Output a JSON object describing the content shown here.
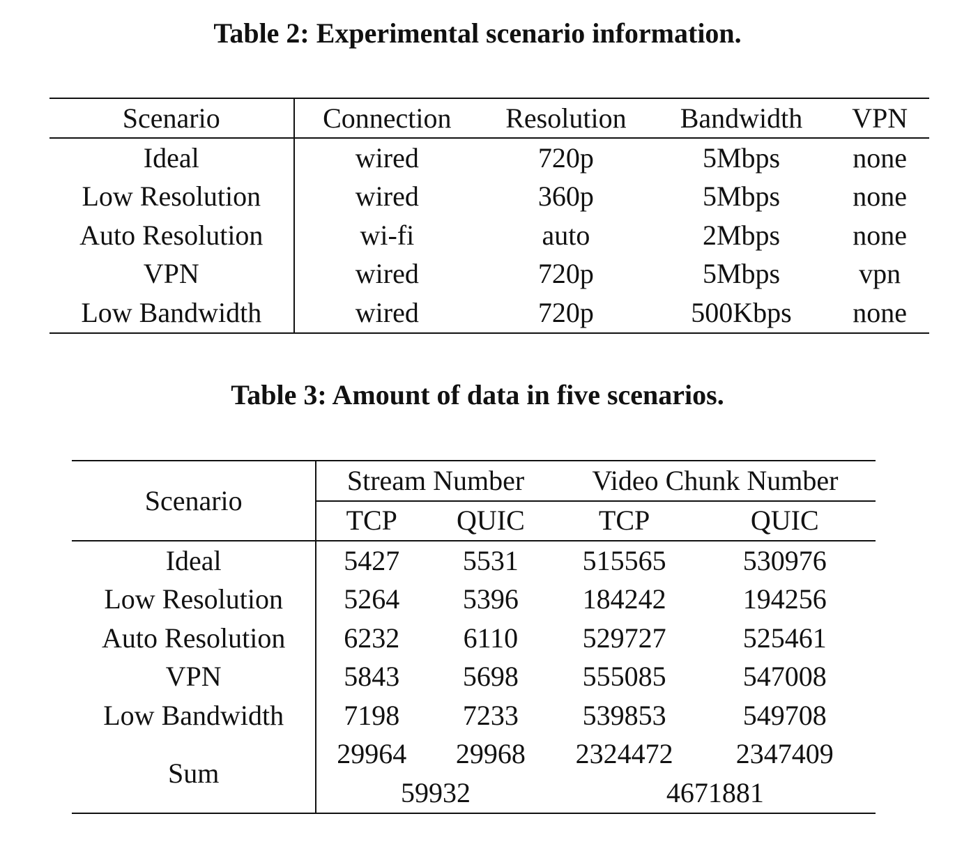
{
  "table2": {
    "caption": "Table 2: Experimental scenario information.",
    "headers": [
      "Scenario",
      "Connection",
      "Resolution",
      "Bandwidth",
      "VPN"
    ],
    "rows": [
      [
        "Ideal",
        "wired",
        "720p",
        "5Mbps",
        "none"
      ],
      [
        "Low Resolution",
        "wired",
        "360p",
        "5Mbps",
        "none"
      ],
      [
        "Auto Resolution",
        "wi-fi",
        "auto",
        "2Mbps",
        "none"
      ],
      [
        "VPN",
        "wired",
        "720p",
        "5Mbps",
        "vpn"
      ],
      [
        "Low Bandwidth",
        "wired",
        "720p",
        "500Kbps",
        "none"
      ]
    ]
  },
  "table3": {
    "caption": "Table 3: Amount of data in five scenarios.",
    "scenario_header": "Scenario",
    "group_headers": [
      "Stream Number",
      "Video Chunk Number"
    ],
    "sub_headers": [
      "TCP",
      "QUIC",
      "TCP",
      "QUIC"
    ],
    "rows": [
      [
        "Ideal",
        "5427",
        "5531",
        "515565",
        "530976"
      ],
      [
        "Low Resolution",
        "5264",
        "5396",
        "184242",
        "194256"
      ],
      [
        "Auto Resolution",
        "6232",
        "6110",
        "529727",
        "525461"
      ],
      [
        "VPN",
        "5843",
        "5698",
        "555085",
        "547008"
      ],
      [
        "Low Bandwidth",
        "7198",
        "7233",
        "539853",
        "549708"
      ]
    ],
    "sum": {
      "label": "Sum",
      "values": [
        "29964",
        "29968",
        "2324472",
        "2347409"
      ],
      "totals": [
        "59932",
        "4671881"
      ]
    }
  }
}
